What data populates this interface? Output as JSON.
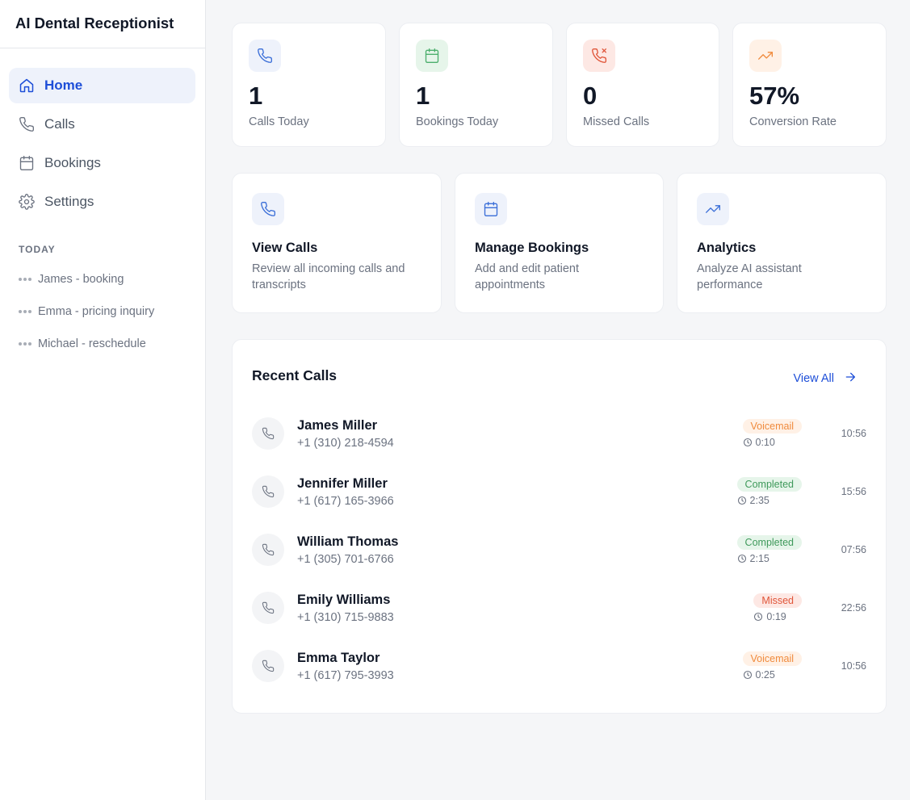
{
  "app": {
    "title": "AI Dental Receptionist"
  },
  "sidebar": {
    "items": [
      {
        "label": "Home",
        "icon": "home-icon",
        "active": true
      },
      {
        "label": "Calls",
        "icon": "phone-icon",
        "active": false
      },
      {
        "label": "Bookings",
        "icon": "calendar-icon",
        "active": false
      },
      {
        "label": "Settings",
        "icon": "gear-icon",
        "active": false
      }
    ],
    "section_title": "TODAY",
    "conversations": [
      {
        "label": "James - booking"
      },
      {
        "label": "Emma - pricing inquiry"
      },
      {
        "label": "Michael - reschedule"
      }
    ]
  },
  "stats": [
    {
      "value": "1",
      "label": "Calls Today",
      "icon": "phone-icon",
      "color": "#3b6fd8",
      "bg": "#eef2fb"
    },
    {
      "value": "1",
      "label": "Bookings Today",
      "icon": "calendar-icon",
      "color": "#4caf6d",
      "bg": "#e6f5ea"
    },
    {
      "value": "0",
      "label": "Missed Calls",
      "icon": "phone-missed-icon",
      "color": "#e0563a",
      "bg": "#fde8e4"
    },
    {
      "value": "57%",
      "label": "Conversion Rate",
      "icon": "trending-up-icon",
      "color": "#f08a3c",
      "bg": "#fff1e6"
    }
  ],
  "actions": [
    {
      "title": "View Calls",
      "description": "Review all incoming calls and transcripts",
      "icon": "phone-icon"
    },
    {
      "title": "Manage Bookings",
      "description": "Add and edit patient appointments",
      "icon": "calendar-icon"
    },
    {
      "title": "Analytics",
      "description": "Analyze AI assistant performance",
      "icon": "trending-up-icon"
    }
  ],
  "recent_calls": {
    "title": "Recent Calls",
    "view_all": "View All",
    "calls": [
      {
        "name": "James Miller",
        "phone": "+1 (310) 218-4594",
        "status": "Voicemail",
        "status_type": "voicemail",
        "duration": "0:10",
        "time": "10:56"
      },
      {
        "name": "Jennifer Miller",
        "phone": "+1 (617) 165-3966",
        "status": "Completed",
        "status_type": "completed",
        "duration": "2:35",
        "time": "15:56"
      },
      {
        "name": "William Thomas",
        "phone": "+1 (305) 701-6766",
        "status": "Completed",
        "status_type": "completed",
        "duration": "2:15",
        "time": "07:56"
      },
      {
        "name": "Emily Williams",
        "phone": "+1 (310) 715-9883",
        "status": "Missed",
        "status_type": "missed",
        "duration": "0:19",
        "time": "22:56"
      },
      {
        "name": "Emma Taylor",
        "phone": "+1 (617) 795-3993",
        "status": "Voicemail",
        "status_type": "voicemail",
        "duration": "0:25",
        "time": "10:56"
      }
    ]
  },
  "colors": {
    "accent": "#1d4ed8",
    "accent_bg": "#eef2fb"
  }
}
